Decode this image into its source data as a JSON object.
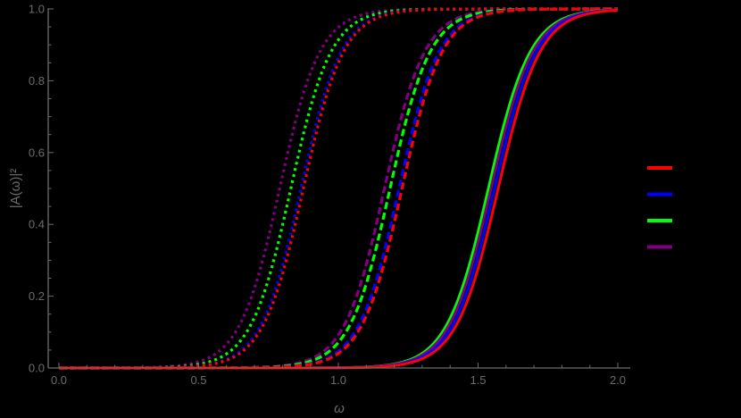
{
  "chart_data": {
    "type": "line",
    "title": "",
    "xlabel": "ω",
    "ylabel": "|A(ω)|²",
    "xlim": [
      0.0,
      2.0
    ],
    "ylim": [
      0.0,
      1.0
    ],
    "x_ticks": [
      "0.0",
      "0.5",
      "1.0",
      "1.5",
      "2.0"
    ],
    "x_tick_values": [
      0.0,
      0.5,
      1.0,
      1.5,
      2.0
    ],
    "y_ticks": [
      "0.0",
      "0.2",
      "0.4",
      "0.6",
      "0.8",
      "1.0"
    ],
    "y_tick_values": [
      0.0,
      0.2,
      0.4,
      0.6,
      0.8,
      1.0
    ],
    "grid": false,
    "legend_position": "right",
    "legend": [
      {
        "color": "#ff0000",
        "label": ""
      },
      {
        "color": "#0000ff",
        "label": ""
      },
      {
        "color": "#00ff00",
        "label": ""
      },
      {
        "color": "#800080",
        "label": ""
      }
    ],
    "curve_model": "logistic: y = 1/(1+exp(-(ω-midpoint)/width))",
    "series": [
      {
        "group": "dotted",
        "color": "#800080",
        "style": "dotted",
        "midpoint": 0.79,
        "width": 0.072
      },
      {
        "group": "dotted",
        "color": "#00ff00",
        "style": "dotted",
        "midpoint": 0.83,
        "width": 0.072
      },
      {
        "group": "dotted",
        "color": "#0000ff",
        "style": "dotted",
        "midpoint": 0.866,
        "width": 0.072
      },
      {
        "group": "dotted",
        "color": "#ff0000",
        "style": "dotted",
        "midpoint": 0.875,
        "width": 0.072
      },
      {
        "group": "dashed",
        "color": "#800080",
        "style": "dashed",
        "midpoint": 1.165,
        "width": 0.072
      },
      {
        "group": "dashed",
        "color": "#00ff00",
        "style": "dashed",
        "midpoint": 1.185,
        "width": 0.072
      },
      {
        "group": "dashed",
        "color": "#0000ff",
        "style": "dashed",
        "midpoint": 1.217,
        "width": 0.072
      },
      {
        "group": "dashed",
        "color": "#ff0000",
        "style": "dashed",
        "midpoint": 1.228,
        "width": 0.072
      },
      {
        "group": "solid",
        "color": "#00ff00",
        "style": "solid",
        "midpoint": 1.537,
        "width": 0.075
      },
      {
        "group": "solid",
        "color": "#800080",
        "style": "solid",
        "midpoint": 1.546,
        "width": 0.075
      },
      {
        "group": "solid",
        "color": "#0000ff",
        "style": "solid",
        "midpoint": 1.559,
        "width": 0.075
      },
      {
        "group": "solid",
        "color": "#ff0000",
        "style": "solid",
        "midpoint": 1.572,
        "width": 0.075
      }
    ]
  },
  "colors": {
    "background": "#000000",
    "axis": "#6b6b6b"
  }
}
